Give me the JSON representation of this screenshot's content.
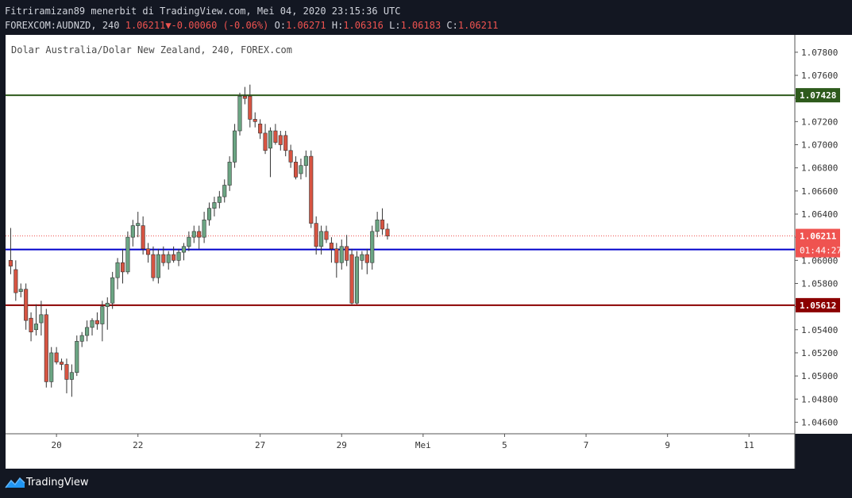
{
  "header": {
    "publisher": "Fitriramizan89 menerbit di TradingView.com, Mei 04, 2020 23:15:36 UTC",
    "symbol": "FOREXCOM:AUDNZD, 240",
    "last": "1.06211",
    "change": "-0.00060 (-0.06%)",
    "open_label": "O:",
    "open": "1.06271",
    "high_label": "H:",
    "high": "1.06316",
    "low_label": "L:",
    "low": "1.06183",
    "close_label": "C:",
    "close": "1.06211",
    "change_arrow_icon": "triangle-down-icon"
  },
  "footer": {
    "brand": "TradingView",
    "logo_icon": "tradingview-logo-icon"
  },
  "colors": {
    "background": "#ffffff",
    "up": "#6ba583",
    "down": "#d75442",
    "resistance": "#2e5a1c",
    "support": "#8b0000",
    "current": "#0000cc",
    "last_price": "#ef5350"
  },
  "chart_data": {
    "type": "candlestick",
    "title": "Dolar Australia/Dolar New Zealand, 240, FOREX.com",
    "ylim": [
      1.045,
      1.0795
    ],
    "y_ticks": [
      "1.04600",
      "1.04800",
      "1.05000",
      "1.05200",
      "1.05400",
      "1.05600",
      "1.05800",
      "1.06000",
      "1.06200",
      "1.06400",
      "1.06600",
      "1.06800",
      "1.07000",
      "1.07200",
      "1.07400",
      "1.07600",
      "1.07800"
    ],
    "x_ticks": [
      {
        "label": "20",
        "index": 9
      },
      {
        "label": "22",
        "index": 25
      },
      {
        "label": "27",
        "index": 49
      },
      {
        "label": "29",
        "index": 65
      },
      {
        "label": "Mei",
        "index": 81
      },
      {
        "label": "5",
        "index": 97
      },
      {
        "label": "7",
        "index": 113
      },
      {
        "label": "9",
        "index": 129
      },
      {
        "label": "11",
        "index": 145
      }
    ],
    "x_range": [
      -1,
      154
    ],
    "horizontal_lines": [
      {
        "value": 1.07428,
        "label": "1.07428",
        "color": "#2e5a1c"
      },
      {
        "value": 1.06094,
        "label": "1.06094",
        "color": "#0000cc"
      },
      {
        "value": 1.05612,
        "label": "1.05612",
        "color": "#8b0000"
      }
    ],
    "last_price": {
      "value": 1.06211,
      "label": "1.06211",
      "countdown": "01:44:27"
    },
    "candles": [
      [
        1.06,
        1.0628,
        1.0588,
        1.0595
      ],
      [
        1.0592,
        1.06,
        1.0565,
        1.0572
      ],
      [
        1.0573,
        1.058,
        1.0568,
        1.0575
      ],
      [
        1.0575,
        1.058,
        1.054,
        1.0548
      ],
      [
        1.055,
        1.0555,
        1.053,
        1.0538
      ],
      [
        1.054,
        1.0562,
        1.0535,
        1.0545
      ],
      [
        1.0546,
        1.0565,
        1.0535,
        1.0553
      ],
      [
        1.0553,
        1.0558,
        1.049,
        1.0495
      ],
      [
        1.0495,
        1.0525,
        1.049,
        1.052
      ],
      [
        1.052,
        1.0525,
        1.051,
        1.0512
      ],
      [
        1.0512,
        1.0515,
        1.0505,
        1.051
      ],
      [
        1.051,
        1.0515,
        1.0485,
        1.0497
      ],
      [
        1.0497,
        1.051,
        1.0482,
        1.0503
      ],
      [
        1.0503,
        1.0535,
        1.05,
        1.053
      ],
      [
        1.053,
        1.0538,
        1.0525,
        1.0535
      ],
      [
        1.0535,
        1.0548,
        1.053,
        1.0542
      ],
      [
        1.0542,
        1.055,
        1.0535,
        1.0548
      ],
      [
        1.0548,
        1.0555,
        1.054,
        1.0545
      ],
      [
        1.0545,
        1.0565,
        1.053,
        1.056
      ],
      [
        1.056,
        1.0568,
        1.054,
        1.0563
      ],
      [
        1.0563,
        1.059,
        1.0558,
        1.0585
      ],
      [
        1.0585,
        1.0602,
        1.0575,
        1.0598
      ],
      [
        1.0598,
        1.061,
        1.058,
        1.059
      ],
      [
        1.059,
        1.0625,
        1.0588,
        1.062
      ],
      [
        1.062,
        1.0635,
        1.0612,
        1.063
      ],
      [
        1.063,
        1.0642,
        1.062,
        1.0632
      ],
      [
        1.063,
        1.0638,
        1.0605,
        1.061
      ],
      [
        1.061,
        1.0615,
        1.0598,
        1.0605
      ],
      [
        1.0605,
        1.0612,
        1.0582,
        1.0585
      ],
      [
        1.0585,
        1.061,
        1.058,
        1.0605
      ],
      [
        1.0605,
        1.0612,
        1.0595,
        1.0598
      ],
      [
        1.0598,
        1.0608,
        1.0592,
        1.0605
      ],
      [
        1.0605,
        1.0612,
        1.0598,
        1.06
      ],
      [
        1.06,
        1.061,
        1.0595,
        1.0607
      ],
      [
        1.0607,
        1.0615,
        1.06,
        1.0612
      ],
      [
        1.0612,
        1.0625,
        1.0608,
        1.062
      ],
      [
        1.062,
        1.063,
        1.0615,
        1.0625
      ],
      [
        1.0625,
        1.063,
        1.061,
        1.062
      ],
      [
        1.062,
        1.0642,
        1.0615,
        1.0635
      ],
      [
        1.0635,
        1.065,
        1.063,
        1.0645
      ],
      [
        1.0645,
        1.0655,
        1.0638,
        1.065
      ],
      [
        1.065,
        1.066,
        1.0645,
        1.0655
      ],
      [
        1.0655,
        1.067,
        1.065,
        1.0665
      ],
      [
        1.0665,
        1.069,
        1.066,
        1.0685
      ],
      [
        1.0685,
        1.0718,
        1.068,
        1.0712
      ],
      [
        1.0712,
        1.0745,
        1.0708,
        1.0742
      ],
      [
        1.0742,
        1.075,
        1.0735,
        1.074
      ],
      [
        1.0742,
        1.0752,
        1.0715,
        1.0722
      ],
      [
        1.0722,
        1.0728,
        1.0715,
        1.072
      ],
      [
        1.0718,
        1.0722,
        1.0705,
        1.071
      ],
      [
        1.071,
        1.0718,
        1.0692,
        1.0695
      ],
      [
        1.0697,
        1.0715,
        1.0672,
        1.0712
      ],
      [
        1.0712,
        1.0718,
        1.07,
        1.0702
      ],
      [
        1.0708,
        1.0712,
        1.0695,
        1.07
      ],
      [
        1.0708,
        1.0712,
        1.069,
        1.0695
      ],
      [
        1.0695,
        1.07,
        1.068,
        1.0685
      ],
      [
        1.0685,
        1.069,
        1.067,
        1.0672
      ],
      [
        1.0675,
        1.0688,
        1.067,
        1.0682
      ],
      [
        1.0682,
        1.0695,
        1.0672,
        1.069
      ],
      [
        1.069,
        1.0695,
        1.0628,
        1.0632
      ],
      [
        1.0632,
        1.0638,
        1.0605,
        1.0612
      ],
      [
        1.0612,
        1.063,
        1.0605,
        1.0625
      ],
      [
        1.0625,
        1.063,
        1.0615,
        1.0618
      ],
      [
        1.0615,
        1.062,
        1.0598,
        1.061
      ],
      [
        1.061,
        1.0615,
        1.0585,
        1.0598
      ],
      [
        1.0598,
        1.0618,
        1.0592,
        1.0612
      ],
      [
        1.0612,
        1.0622,
        1.0595,
        1.06
      ],
      [
        1.0605,
        1.061,
        1.0562,
        1.0563
      ],
      [
        1.0563,
        1.0608,
        1.0562,
        1.0603
      ],
      [
        1.06,
        1.0608,
        1.0592,
        1.0605
      ],
      [
        1.0605,
        1.061,
        1.0588,
        1.0598
      ],
      [
        1.0598,
        1.063,
        1.0592,
        1.0625
      ],
      [
        1.0625,
        1.0642,
        1.062,
        1.0635
      ],
      [
        1.0635,
        1.0645,
        1.0622,
        1.0627
      ],
      [
        1.0627,
        1.0632,
        1.0618,
        1.0621
      ]
    ],
    "candle_x": [
      0,
      1,
      2,
      3,
      4,
      5,
      6,
      7,
      8,
      9,
      10,
      11,
      12,
      13,
      14,
      15,
      16,
      17,
      18,
      19,
      20,
      21,
      22,
      23,
      24,
      25,
      26,
      27,
      28,
      29,
      30,
      31,
      32,
      33,
      34,
      35,
      36,
      37,
      38,
      39,
      40,
      41,
      42,
      43,
      44,
      45,
      46,
      47,
      48,
      49,
      50,
      51,
      52,
      53,
      54,
      55,
      56,
      57,
      58,
      59,
      60,
      61,
      62,
      63,
      64,
      65,
      66,
      67,
      68,
      69,
      70,
      71,
      72,
      73,
      74
    ]
  }
}
